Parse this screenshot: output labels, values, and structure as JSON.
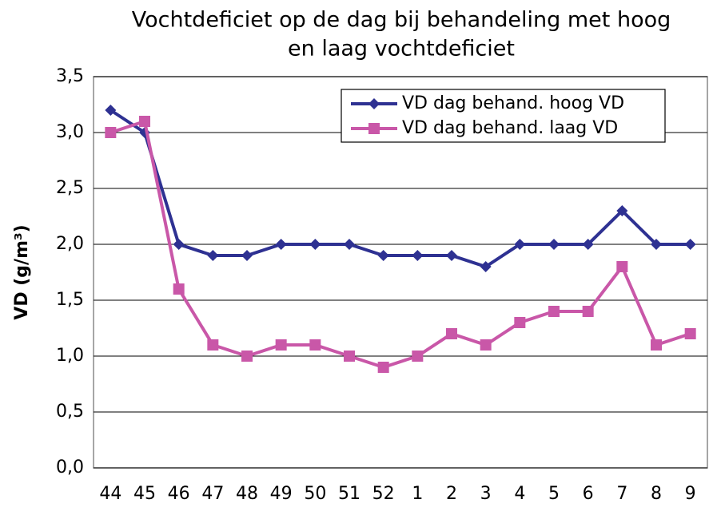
{
  "chart_data": {
    "type": "line",
    "title": [
      "Vochtdeficiet op de dag bij behandeling met hoog",
      "en laag vochtdeficiet"
    ],
    "y_label": "VD (g/m³)",
    "categories": [
      "44",
      "45",
      "46",
      "47",
      "48",
      "49",
      "50",
      "51",
      "52",
      "1",
      "2",
      "3",
      "4",
      "5",
      "6",
      "7",
      "8",
      "9"
    ],
    "series": [
      {
        "name": "VD dag behand. hoog VD",
        "color": "#2e3192",
        "marker": "diamond",
        "values": [
          3.2,
          3.0,
          2.0,
          1.9,
          1.9,
          2.0,
          2.0,
          2.0,
          1.9,
          1.9,
          1.9,
          1.8,
          2.0,
          2.0,
          2.0,
          2.3,
          2.0,
          2.0
        ]
      },
      {
        "name": "VD dag behand. laag VD",
        "color": "#c957a8",
        "marker": "square",
        "values": [
          3.0,
          3.1,
          1.6,
          1.1,
          1.0,
          1.1,
          1.1,
          1.0,
          0.9,
          1.0,
          1.2,
          1.1,
          1.3,
          1.4,
          1.4,
          1.8,
          1.1,
          1.2
        ]
      }
    ],
    "ylim": [
      0,
      3.5
    ],
    "yticks": [
      {
        "value": 0,
        "label": "0,0"
      },
      {
        "value": 0.5,
        "label": "0,5"
      },
      {
        "value": 1,
        "label": "1,0"
      },
      {
        "value": 1.5,
        "label": "1,5"
      },
      {
        "value": 2,
        "label": "2,0"
      },
      {
        "value": 2.5,
        "label": "2,5"
      },
      {
        "value": 3,
        "label": "3,0"
      },
      {
        "value": 3.5,
        "label": "3,5"
      }
    ],
    "grid": true,
    "legend": "upper right"
  }
}
